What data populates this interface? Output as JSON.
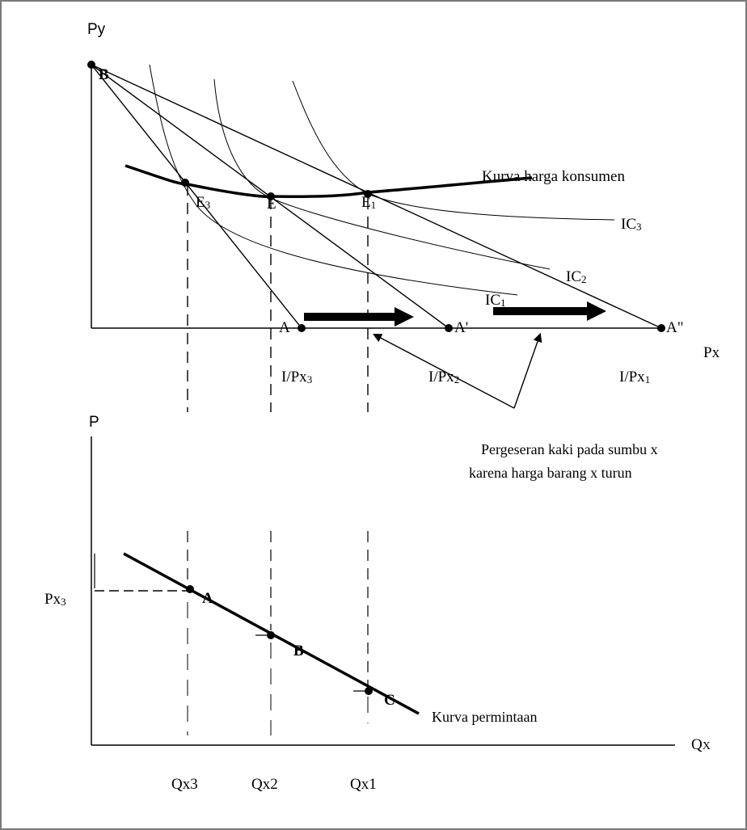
{
  "top_chart": {
    "y_axis_label": "Py",
    "x_axis_label": "Px",
    "curve_label": "Kurva harga konsumen",
    "ic_labels": [
      "IC3",
      "IC2",
      "IC1"
    ],
    "point_labels": {
      "B": "B",
      "E3": "E3",
      "E": "E",
      "E1": "E1",
      "A": "A",
      "A1": "A'",
      "A2": "A\""
    },
    "intercept_labels": [
      "I/Px3",
      "I/Px2",
      "I/Px1"
    ]
  },
  "annotation": {
    "line1": "Pergeseran  kaki pada sumbu  x",
    "line2": "karena  harga barang  x turun"
  },
  "bottom_chart": {
    "y_axis_label": "P",
    "x_axis_label": "QX",
    "price_label": "Px3",
    "curve_label": "Kurva  permintaan",
    "point_labels": [
      "A",
      "B",
      "C"
    ],
    "quantity_labels": [
      "Qx3",
      "Qx2",
      "Qx1"
    ]
  }
}
